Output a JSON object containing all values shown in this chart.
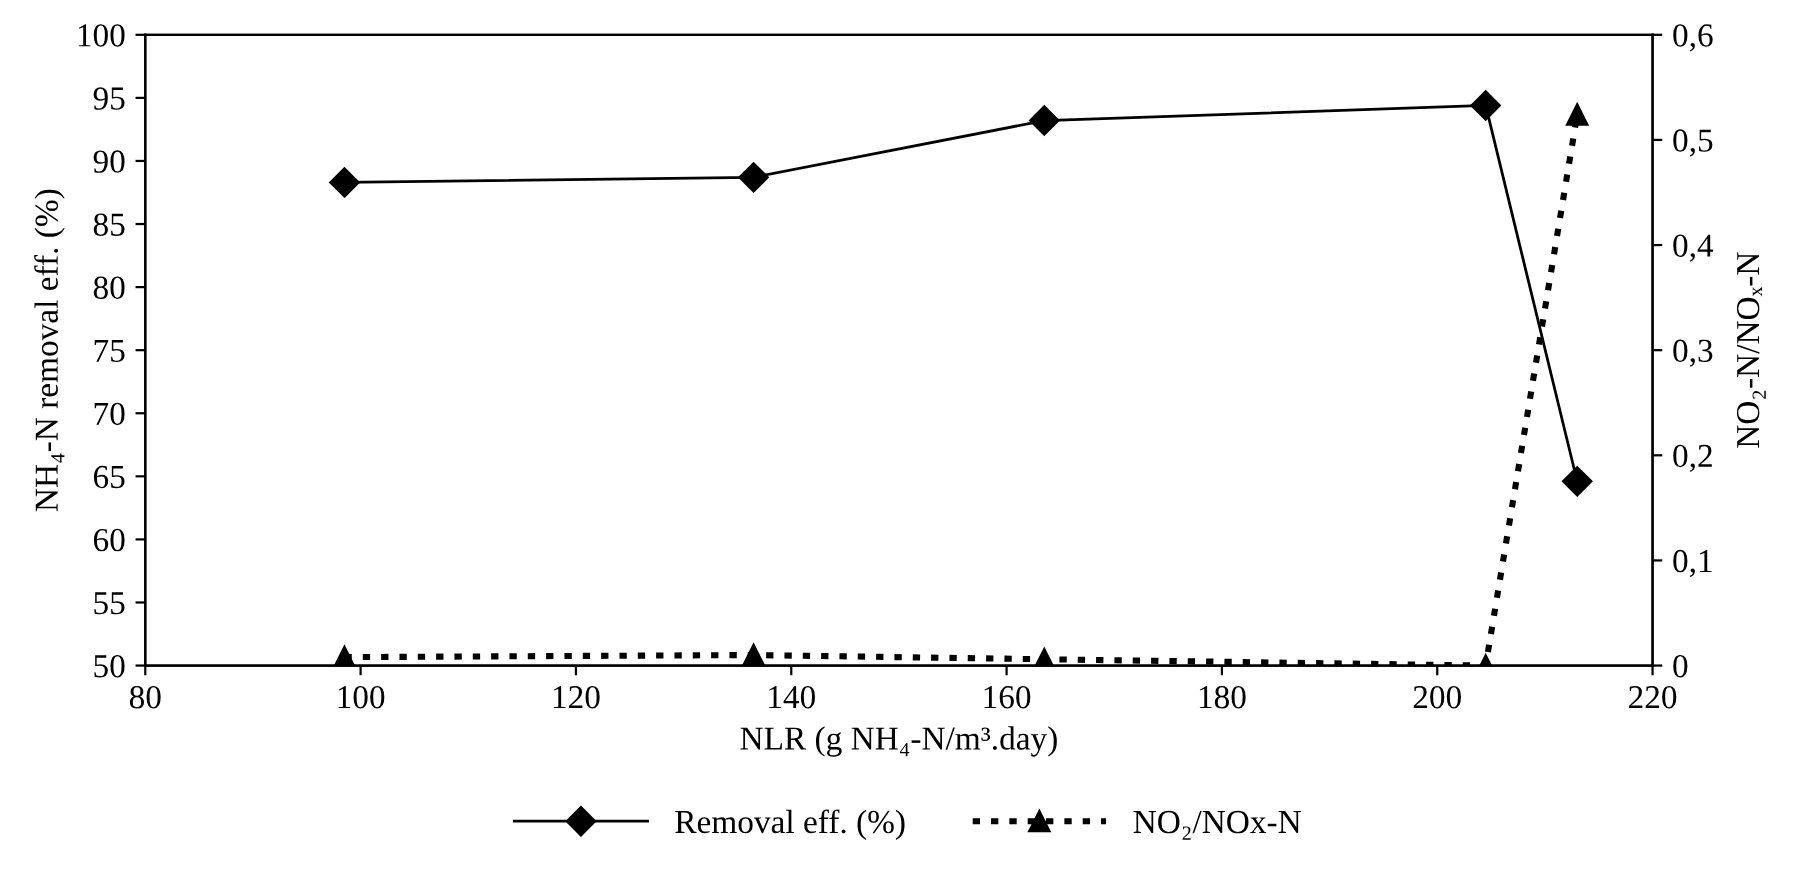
{
  "chart_data": {
    "type": "line",
    "xlabel": "NLR (g NH₄-N/m³.day)",
    "ylabel": "NH₄-N removal eff. (%)",
    "y2label": "NO₂-N/NOₓ-N",
    "x": [
      98.5,
      136.5,
      163.5,
      204.5,
      213
    ],
    "series": [
      {
        "name": "Removal eff. (%)",
        "color": "#000000",
        "values": [
          88.3,
          88.7,
          93.2,
          94.4,
          64.6
        ],
        "marker": "diamond",
        "line_style": "solid"
      },
      {
        "name": "NO₂/NOx-N",
        "color": "#000000",
        "values": [
          0.008,
          0.01,
          0.006,
          0.0,
          0.524
        ],
        "axis": "y2",
        "marker": "triangle",
        "line_style": "dotted"
      }
    ],
    "xlim": [
      80,
      220
    ],
    "xticks": [
      80,
      100,
      120,
      140,
      160,
      180,
      200,
      220
    ],
    "ylim": [
      50,
      100
    ],
    "yticks": [
      50,
      55,
      60,
      65,
      70,
      75,
      80,
      85,
      90,
      95,
      100
    ],
    "y2lim": [
      0,
      0.6
    ],
    "y2ticks": [
      {
        "value": 0,
        "label": "0"
      },
      {
        "value": 0.1,
        "label": "0,1"
      },
      {
        "value": 0.2,
        "label": "0,2"
      },
      {
        "value": 0.3,
        "label": "0,3"
      },
      {
        "value": 0.4,
        "label": "0,4"
      },
      {
        "value": 0.5,
        "label": "0,5"
      },
      {
        "value": 0.6,
        "label": "0,6"
      }
    ],
    "grid": false,
    "legend": "bottom"
  }
}
